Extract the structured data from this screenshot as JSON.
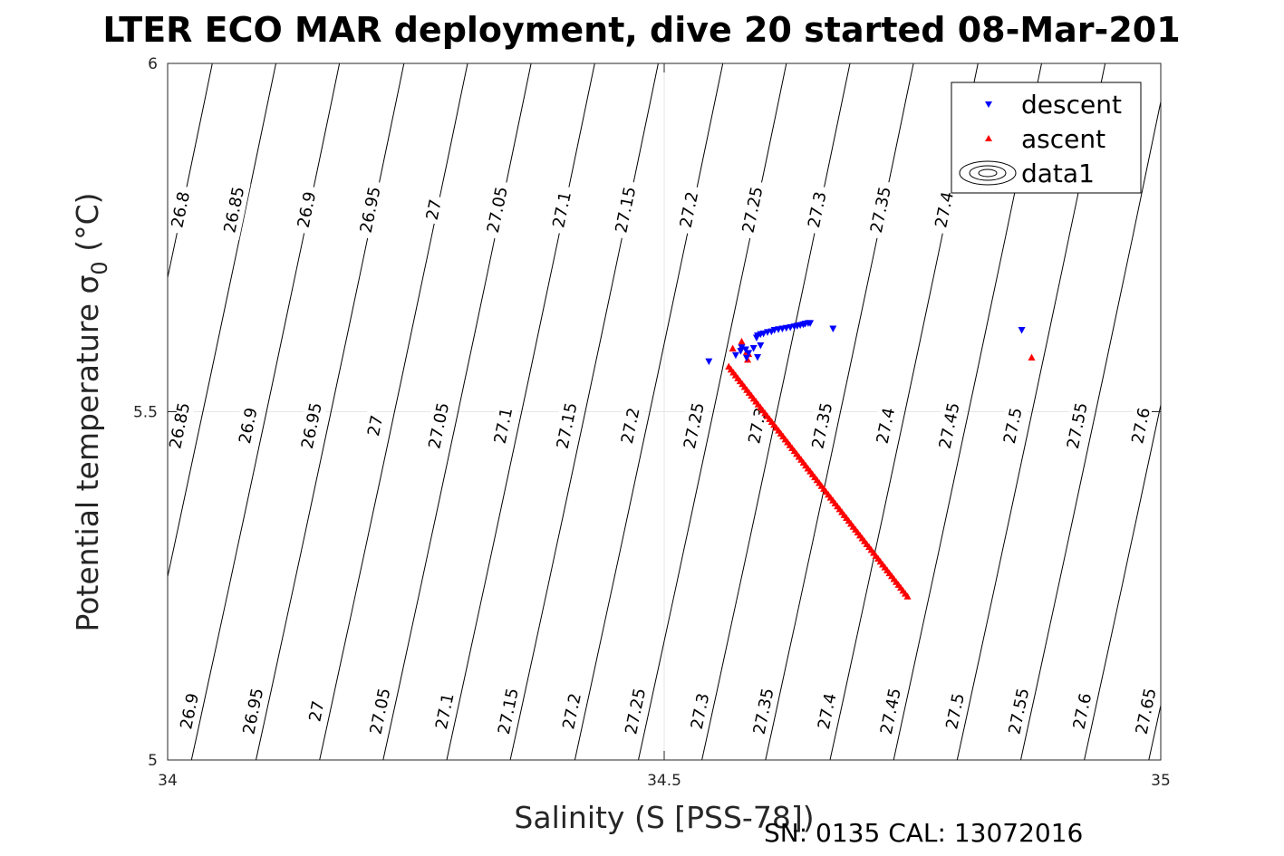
{
  "chart_data": {
    "type": "scatter",
    "title": "LTER ECO MAR deployment, dive 20 started 08-Mar-201",
    "xlabel": "Salinity (S [PSS-78])",
    "ylabel_main": "Potential temperature ",
    "ylabel_symbol": "σ",
    "ylabel_subscript": "0",
    "ylabel_unit": " (°C)",
    "xlim": [
      34,
      35
    ],
    "ylim": [
      5,
      6
    ],
    "x_ticks": [
      "34",
      "34.5",
      "35"
    ],
    "x_tick_values": [
      34,
      34.5,
      35
    ],
    "y_ticks": [
      "5",
      "5.5",
      "6"
    ],
    "y_tick_values": [
      5,
      5.5,
      6
    ],
    "grid": true,
    "legend_placement": "top-right",
    "footnote": "SN: 0135  CAL: 13072016",
    "contours": {
      "levels": [
        26.8,
        26.85,
        26.9,
        26.95,
        27.0,
        27.05,
        27.1,
        27.15,
        27.2,
        27.25,
        27.3,
        27.35,
        27.4,
        27.45,
        27.5,
        27.55,
        27.6,
        27.65
      ],
      "ref_x_at_y6": [
        34.045,
        34.109,
        34.173,
        34.238,
        34.302,
        34.366,
        34.43,
        34.494,
        34.559,
        34.623,
        34.687,
        34.751,
        34.816,
        34.88,
        34.944,
        35.008,
        35.072,
        35.137
      ],
      "x_per_degree": -0.145,
      "label_rows": [
        {
          "y": 5.79,
          "labels": [
            {
              "text": "26.8",
              "x": 34.013
            },
            {
              "text": "26.85",
              "x": 34.067
            },
            {
              "text": "26.9",
              "x": 34.14
            },
            {
              "text": "26.95",
              "x": 34.204
            },
            {
              "text": "27",
              "x": 34.268
            },
            {
              "text": "27.05",
              "x": 34.332
            },
            {
              "text": "27.1",
              "x": 34.397
            },
            {
              "text": "27.15",
              "x": 34.461
            },
            {
              "text": "27.2",
              "x": 34.525
            },
            {
              "text": "27.25",
              "x": 34.589
            },
            {
              "text": "27.3",
              "x": 34.654
            },
            {
              "text": "27.35",
              "x": 34.718
            },
            {
              "text": "27.4",
              "x": 34.782
            }
          ]
        },
        {
          "y": 5.48,
          "labels": [
            {
              "text": "26.85",
              "x": 34.012
            },
            {
              "text": "26.9",
              "x": 34.081
            },
            {
              "text": "26.95",
              "x": 34.145
            },
            {
              "text": "27",
              "x": 34.209
            },
            {
              "text": "27.05",
              "x": 34.273
            },
            {
              "text": "27.1",
              "x": 34.338
            },
            {
              "text": "27.15",
              "x": 34.402
            },
            {
              "text": "27.2",
              "x": 34.466
            },
            {
              "text": "27.25",
              "x": 34.53
            },
            {
              "text": "27.3",
              "x": 34.594
            },
            {
              "text": "27.35",
              "x": 34.659
            },
            {
              "text": "27.4",
              "x": 34.723
            },
            {
              "text": "27.45",
              "x": 34.787
            },
            {
              "text": "27.5",
              "x": 34.851
            },
            {
              "text": "27.55",
              "x": 34.916
            },
            {
              "text": "27.6",
              "x": 34.98
            }
          ]
        },
        {
          "y": 5.07,
          "labels": [
            {
              "text": "26.9",
              "x": 34.022
            },
            {
              "text": "26.95",
              "x": 34.086
            },
            {
              "text": "27",
              "x": 34.15
            },
            {
              "text": "27.05",
              "x": 34.214
            },
            {
              "text": "27.1",
              "x": 34.279
            },
            {
              "text": "27.15",
              "x": 34.343
            },
            {
              "text": "27.2",
              "x": 34.407
            },
            {
              "text": "27.25",
              "x": 34.471
            },
            {
              "text": "27.3",
              "x": 34.536
            },
            {
              "text": "27.35",
              "x": 34.6
            },
            {
              "text": "27.4",
              "x": 34.664
            },
            {
              "text": "27.45",
              "x": 34.728
            },
            {
              "text": "27.5",
              "x": 34.793
            },
            {
              "text": "27.55",
              "x": 34.857
            },
            {
              "text": "27.6",
              "x": 34.921
            },
            {
              "text": "27.65",
              "x": 34.985
            }
          ]
        }
      ]
    },
    "series": [
      {
        "name": "descent",
        "marker": "triangle-down",
        "color": "#0000ff",
        "points": [
          [
            34.545,
            5.572
          ],
          [
            34.572,
            5.581
          ],
          [
            34.577,
            5.587
          ],
          [
            34.582,
            5.589
          ],
          [
            34.585,
            5.584
          ],
          [
            34.59,
            5.591
          ],
          [
            34.597,
            5.595
          ],
          [
            34.578,
            5.592
          ],
          [
            34.593,
            5.606
          ],
          [
            34.594,
            5.609
          ],
          [
            34.597,
            5.611
          ],
          [
            34.6,
            5.612
          ],
          [
            34.604,
            5.614
          ],
          [
            34.608,
            5.615
          ],
          [
            34.611,
            5.617
          ],
          [
            34.615,
            5.618
          ],
          [
            34.619,
            5.619
          ],
          [
            34.623,
            5.62
          ],
          [
            34.627,
            5.621
          ],
          [
            34.631,
            5.622
          ],
          [
            34.634,
            5.623
          ],
          [
            34.637,
            5.624
          ],
          [
            34.64,
            5.625
          ],
          [
            34.642,
            5.626
          ],
          [
            34.645,
            5.627
          ],
          [
            34.647,
            5.627
          ],
          [
            34.67,
            5.619
          ],
          [
            34.86,
            5.617
          ],
          [
            34.583,
            5.577
          ],
          [
            34.594,
            5.578
          ]
        ]
      },
      {
        "name": "ascent",
        "marker": "triangle-up",
        "color": "#ff0000",
        "line": {
          "x_start": 34.565,
          "y_start": 5.565,
          "x_end": 34.745,
          "y_end": 5.235,
          "count": 80
        },
        "points": [
          [
            34.569,
            5.591
          ],
          [
            34.578,
            5.601
          ],
          [
            34.578,
            5.594
          ],
          [
            34.583,
            5.586
          ],
          [
            34.585,
            5.583
          ],
          [
            34.584,
            5.575
          ],
          [
            34.87,
            5.578
          ]
        ]
      },
      {
        "name": "data1",
        "marker": "contour-icon",
        "color": "#000000"
      }
    ]
  }
}
